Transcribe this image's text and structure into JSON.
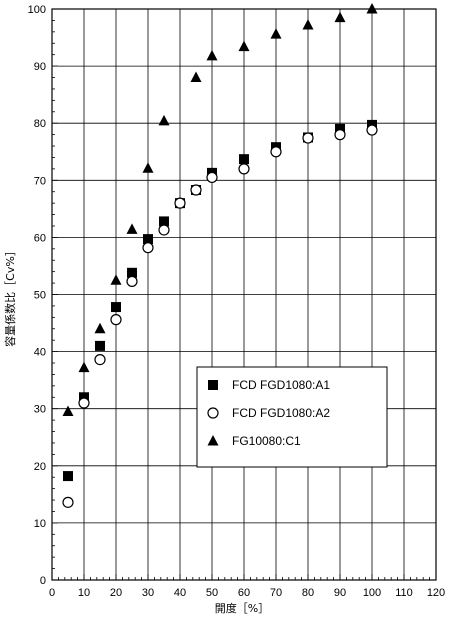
{
  "chart_data": {
    "type": "scatter",
    "xlabel": "開度［%］",
    "ylabel": "容量係数比［Cv%］",
    "xlim": [
      0,
      120
    ],
    "ylim": [
      0,
      100
    ],
    "xticks": [
      0,
      10,
      20,
      30,
      40,
      50,
      60,
      70,
      80,
      90,
      100,
      110,
      120
    ],
    "yticks": [
      0,
      10,
      20,
      30,
      40,
      50,
      60,
      70,
      80,
      90,
      100
    ],
    "grid": true,
    "legend_position": "center-right",
    "series": [
      {
        "name": "FCD FGD1080:A1",
        "marker": "filled-square",
        "points": [
          [
            5,
            18.2
          ],
          [
            10,
            32
          ],
          [
            15,
            41
          ],
          [
            20,
            47.8
          ],
          [
            25,
            53.8
          ],
          [
            30,
            59.7
          ],
          [
            35,
            62.8
          ],
          [
            40,
            66
          ],
          [
            45,
            68.3
          ],
          [
            50,
            71.3
          ],
          [
            60,
            73.7
          ],
          [
            70,
            75.8
          ],
          [
            80,
            77.5
          ],
          [
            90,
            79
          ],
          [
            100,
            79.7
          ]
        ]
      },
      {
        "name": "FCD FGD1080:A2",
        "marker": "open-circle",
        "points": [
          [
            5,
            13.6
          ],
          [
            10,
            31
          ],
          [
            15,
            38.6
          ],
          [
            20,
            45.6
          ],
          [
            25,
            52.3
          ],
          [
            30,
            58.2
          ],
          [
            35,
            61.3
          ],
          [
            40,
            66
          ],
          [
            45,
            68.3
          ],
          [
            50,
            70.5
          ],
          [
            60,
            72
          ],
          [
            70,
            75
          ],
          [
            80,
            77.4
          ],
          [
            90,
            78
          ],
          [
            100,
            78.8
          ]
        ]
      },
      {
        "name": "FG10080:C1",
        "marker": "filled-triangle",
        "points": [
          [
            5,
            29.5
          ],
          [
            10,
            37.2
          ],
          [
            15,
            44
          ],
          [
            20,
            52.5
          ],
          [
            25,
            61.4
          ],
          [
            30,
            72.1
          ],
          [
            35,
            80.4
          ],
          [
            45,
            88
          ],
          [
            50,
            91.8
          ],
          [
            60,
            93.4
          ],
          [
            70,
            95.6
          ],
          [
            80,
            97.2
          ],
          [
            90,
            98.5
          ],
          [
            100,
            100
          ]
        ]
      }
    ]
  }
}
